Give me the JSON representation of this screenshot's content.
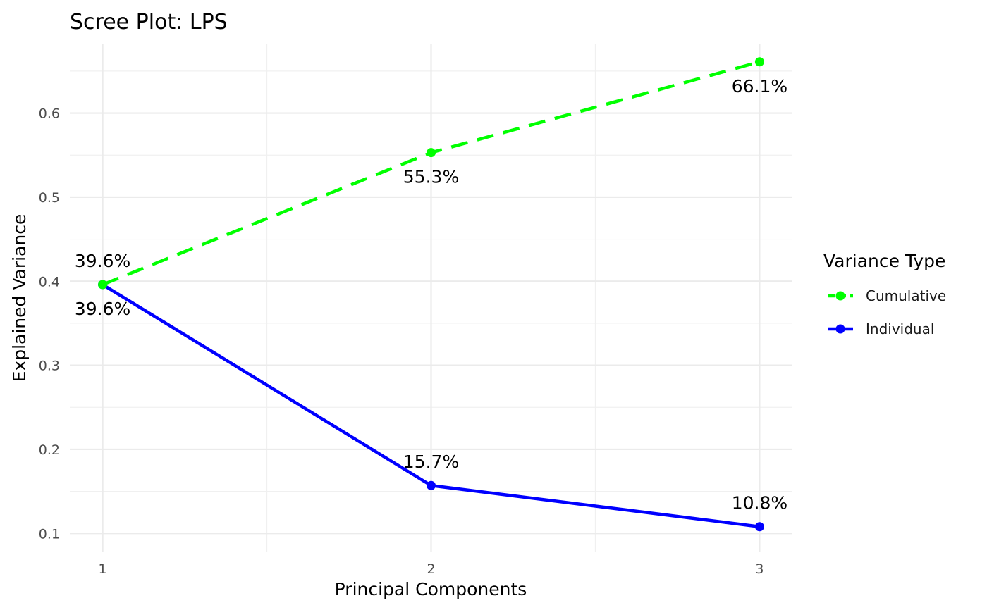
{
  "chart_data": {
    "type": "line",
    "title": "Scree Plot: LPS",
    "xlabel": "Principal Components",
    "ylabel": "Explained Variance",
    "x": [
      1,
      2,
      3
    ],
    "x_tick_labels": [
      "1",
      "2",
      "3"
    ],
    "y_ticks": [
      0.1,
      0.2,
      0.3,
      0.4,
      0.5,
      0.6
    ],
    "y_tick_labels": [
      "0.1",
      "0.2",
      "0.3",
      "0.4",
      "0.5",
      "0.6"
    ],
    "xlim": [
      0.9,
      3.1
    ],
    "ylim": [
      0.0776,
      0.6826
    ],
    "grid": true,
    "legend": {
      "title": "Variance Type",
      "placement": "right"
    },
    "series": [
      {
        "name": "Cumulative",
        "values": [
          0.396,
          0.553,
          0.661
        ],
        "labels": [
          "39.6%",
          "55.3%",
          "66.1%"
        ],
        "color": "#00FF00",
        "dash": "dashed",
        "label_side": "above-first,below-rest"
      },
      {
        "name": "Individual",
        "values": [
          0.396,
          0.157,
          0.108
        ],
        "labels": [
          "39.6%",
          "15.7%",
          "10.8%"
        ],
        "color": "#0000FF",
        "dash": "solid",
        "label_side": "below-first,above-rest"
      }
    ]
  }
}
